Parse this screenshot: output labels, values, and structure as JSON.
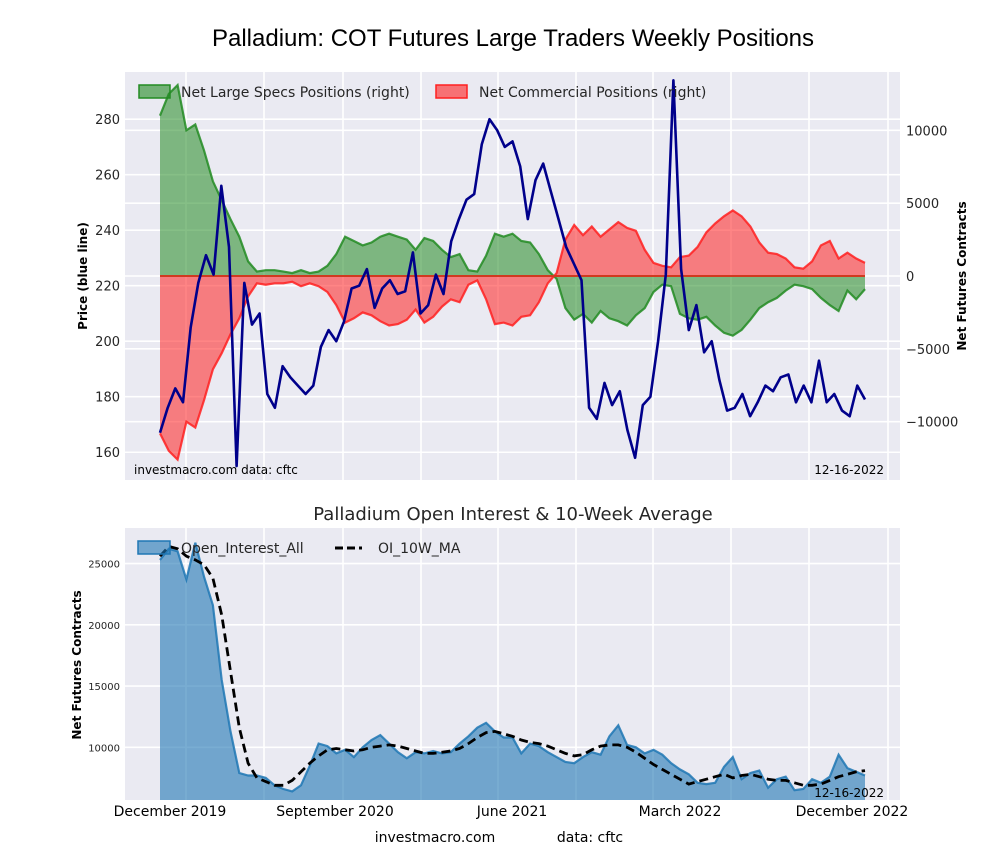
{
  "chart_data": [
    {
      "type": "area",
      "title": "Palladium: COT Futures Large Traders Weekly Positions",
      "xlabel": "",
      "ylabel": "Price (blue line)",
      "ylabel_right": "Net Futures Contracts",
      "ylim": [
        150,
        297
      ],
      "ylim_right": [
        -14000,
        14000
      ],
      "yticks": [
        160,
        180,
        200,
        220,
        240,
        260,
        280
      ],
      "yticks_right": [
        -10000,
        -5000,
        0,
        5000,
        10000
      ],
      "yticks_right_labels": [
        "−10000",
        "−5000",
        "0",
        "5000",
        "10000"
      ],
      "x_start": "2019-11",
      "x_end": "2022-12-16",
      "grid": true,
      "legend": "top-left",
      "note_left": "investmacro.com    data: cftc",
      "note_right": "12-16-2022",
      "series": [
        {
          "name": "Net Large Specs Positions (right)",
          "type": "area",
          "color": "#228b22",
          "values": [
            11000,
            12500,
            13100,
            10000,
            10400,
            8600,
            6500,
            5200,
            3900,
            2700,
            1000,
            300,
            400,
            400,
            300,
            200,
            400,
            200,
            300,
            700,
            1500,
            2700,
            2400,
            2100,
            2300,
            2700,
            2900,
            2700,
            2500,
            1800,
            2600,
            2400,
            1800,
            1300,
            1500,
            400,
            300,
            1400,
            2900,
            2700,
            2900,
            2400,
            2300,
            1500,
            400,
            -200,
            -2200,
            -3000,
            -2600,
            -3200,
            -2400,
            -2900,
            -3100,
            -3400,
            -2700,
            -2200,
            -1100,
            -600,
            -700,
            -2600,
            -2900,
            -3000,
            -2800,
            -3400,
            -3900,
            -4100,
            -3700,
            -3000,
            -2200,
            -1800,
            -1500,
            -1000,
            -600,
            -700,
            -900,
            -1500,
            -2000,
            -2400,
            -1000,
            -1600,
            -900
          ],
          "legend_label": "Net Large Specs Positions (right)"
        },
        {
          "name": "Net Commercial Positions (right)",
          "type": "area",
          "color": "#ff2020",
          "values": [
            -10800,
            -12000,
            -12600,
            -10000,
            -10400,
            -8500,
            -6400,
            -5300,
            -4000,
            -2900,
            -1400,
            -500,
            -600,
            -500,
            -500,
            -400,
            -700,
            -500,
            -700,
            -1100,
            -2000,
            -3200,
            -2900,
            -2500,
            -2700,
            -3100,
            -3400,
            -3300,
            -3000,
            -2300,
            -3200,
            -2800,
            -2100,
            -1600,
            -1800,
            -600,
            -300,
            -1600,
            -3300,
            -3200,
            -3400,
            -2800,
            -2700,
            -1800,
            -500,
            200,
            2500,
            3500,
            2800,
            3400,
            2700,
            3200,
            3700,
            3300,
            3100,
            1800,
            900,
            700,
            600,
            1300,
            1400,
            2000,
            3000,
            3600,
            4100,
            4500,
            4100,
            3400,
            2300,
            1600,
            1500,
            1200,
            600,
            500,
            1000,
            2100,
            2400,
            1200,
            1600,
            1200,
            900
          ],
          "legend_label": "Net Commercial Positions (right)"
        },
        {
          "name": "Price (blue line)",
          "type": "line",
          "color": "#00008b",
          "values": [
            167,
            176,
            183,
            178,
            205,
            221,
            231,
            224,
            256,
            234,
            155,
            221,
            206,
            210,
            181,
            176,
            191,
            187,
            184,
            181,
            184,
            198,
            204,
            200,
            207,
            219,
            220,
            226,
            212,
            219,
            222,
            217,
            218,
            232,
            210,
            213,
            224,
            217,
            236,
            244,
            251,
            253,
            271,
            280,
            276,
            270,
            272,
            263,
            244,
            258,
            264,
            254,
            244,
            234,
            228,
            222,
            176,
            172,
            185,
            177,
            182,
            168,
            158,
            177,
            180,
            200,
            224,
            294,
            226,
            204,
            213,
            196,
            200,
            186,
            175,
            176,
            181,
            173,
            178,
            184,
            182,
            187,
            188,
            178,
            184,
            178,
            193,
            178,
            181,
            175,
            173,
            184,
            179
          ]
        }
      ]
    },
    {
      "type": "area",
      "title": "Palladium Open Interest & 10-Week Average",
      "xlabel": "",
      "ylabel": "Net Futures Contracts",
      "ylim": [
        5700,
        27900
      ],
      "yticks": [
        10000,
        15000,
        20000,
        25000
      ],
      "xtick_labels": [
        "December 2019",
        "September 2020",
        "June 2021",
        "March 2022",
        "December 2022"
      ],
      "grid": true,
      "legend": "top-left",
      "note_right": "12-16-2022",
      "series": [
        {
          "name": "Open_Interest_All",
          "type": "area",
          "color": "#1f77b4",
          "values": [
            25300,
            26200,
            26000,
            23700,
            26700,
            23900,
            21600,
            15500,
            11300,
            7900,
            7700,
            7700,
            7500,
            6900,
            6600,
            6400,
            6900,
            8500,
            10300,
            10100,
            9500,
            9800,
            9200,
            10000,
            10600,
            11000,
            10300,
            9600,
            9100,
            9600,
            9500,
            9700,
            9500,
            9600,
            10300,
            10900,
            11600,
            12000,
            11300,
            10800,
            10800,
            9500,
            10300,
            10100,
            9600,
            9200,
            8800,
            8700,
            9200,
            9600,
            9400,
            10900,
            11800,
            10200,
            10000,
            9500,
            9800,
            9400,
            8700,
            8200,
            7800,
            7100,
            7000,
            7100,
            8400,
            9200,
            7400,
            7900,
            8100,
            6700,
            7400,
            7600,
            6500,
            6600,
            7400,
            7100,
            7600,
            9400,
            8300,
            8000,
            7700
          ],
          "legend_label": "Open_Interest_All"
        },
        {
          "name": "OI_10W_MA",
          "type": "line",
          "style": "dashed",
          "color": "#000000",
          "values": [
            25600,
            26400,
            26200,
            25600,
            25300,
            24900,
            23800,
            20800,
            16200,
            11600,
            8700,
            7500,
            7200,
            6900,
            6900,
            7300,
            8000,
            8700,
            9300,
            9800,
            9900,
            9800,
            9700,
            9800,
            10000,
            10100,
            10200,
            10100,
            9900,
            9700,
            9500,
            9500,
            9600,
            9700,
            9900,
            10300,
            10800,
            11200,
            11300,
            11100,
            10900,
            10600,
            10400,
            10300,
            10100,
            9800,
            9500,
            9300,
            9400,
            9800,
            10100,
            10200,
            10200,
            10000,
            9600,
            9100,
            8600,
            8200,
            7800,
            7400,
            7000,
            7200,
            7400,
            7600,
            7800,
            7500,
            7700,
            7800,
            7600,
            7400,
            7300,
            7300,
            7100,
            6900,
            6900,
            7000,
            7300,
            7600,
            7800,
            8000,
            8100
          ],
          "legend_label": "OI_10W_MA"
        }
      ]
    }
  ],
  "footer": {
    "left": "investmacro.com",
    "right": "data: cftc"
  }
}
